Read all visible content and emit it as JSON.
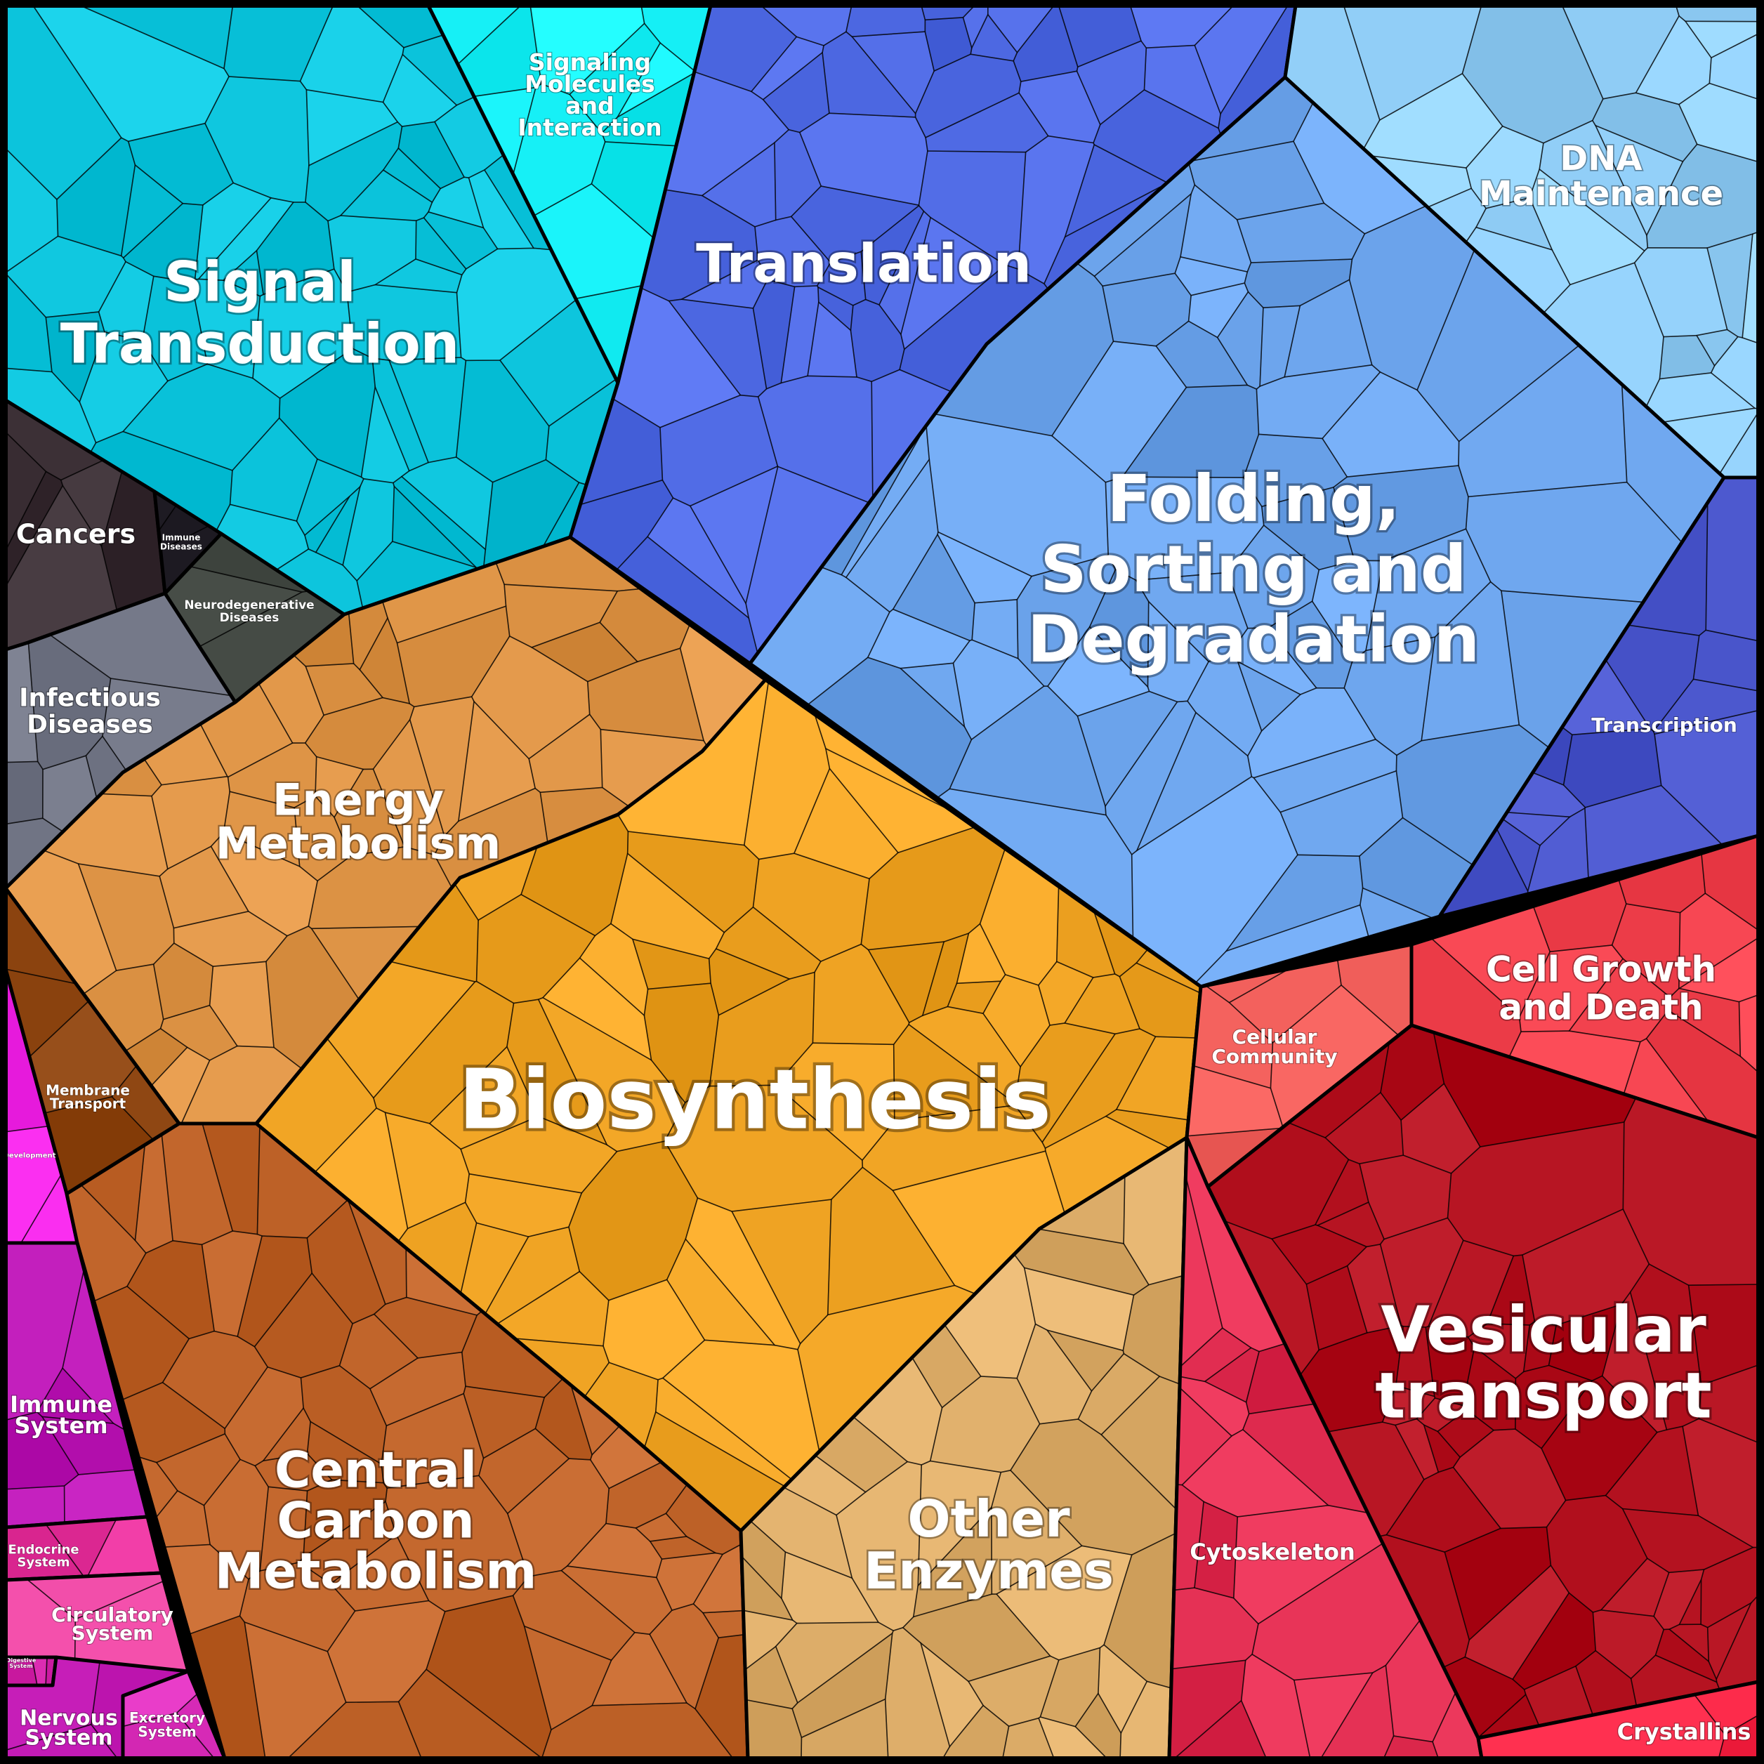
{
  "regions": {
    "signal_transduction": {
      "lines": [
        "Signal",
        "Transduction"
      ],
      "color": "#0cc4dc"
    },
    "signaling_molecules": {
      "lines": [
        "Signaling",
        "Molecules",
        "and",
        "Interaction"
      ],
      "color": "#16f0f6"
    },
    "translation": {
      "lines": [
        "Translation"
      ],
      "color": "#4f6ae4"
    },
    "dna_maintenance": {
      "lines": [
        "DNA",
        "Maintenance"
      ],
      "color": "#92cff8"
    },
    "folding": {
      "lines": [
        "Folding,",
        "Sorting and",
        "Degradation"
      ],
      "color": "#6ea6ee"
    },
    "transcription": {
      "lines": [
        "Transcription"
      ],
      "color": "#4a56cc"
    },
    "cancers": {
      "lines": [
        "Cancers"
      ],
      "color": "#3a2e34"
    },
    "immune_diseases": {
      "lines": [
        "Immune",
        "Diseases"
      ],
      "color": "#2b2830"
    },
    "neurodegenerative": {
      "lines": [
        "Neurodegenerative",
        "Diseases"
      ],
      "color": "#444a44"
    },
    "infectious": {
      "lines": [
        "Infectious",
        "Diseases"
      ],
      "color": "#707484"
    },
    "energy_metabolism": {
      "lines": [
        "Energy",
        "Metabolism"
      ],
      "color": "#dc9244"
    },
    "biosynthesis": {
      "lines": [
        "Biosynthesis"
      ],
      "color": "#f0a424"
    },
    "membrane_transport": {
      "lines": [
        "Membrane",
        "Transport"
      ],
      "color": "#8c4410"
    },
    "development": {
      "lines": [
        "Development"
      ],
      "color": "#ee22e4"
    },
    "central_carbon": {
      "lines": [
        "Central",
        "Carbon",
        "Metabolism"
      ],
      "color": "#c0642a"
    },
    "other_enzymes": {
      "lines": [
        "Other",
        "Enzymes"
      ],
      "color": "#deae6a"
    },
    "cellular_community": {
      "lines": [
        "Cellular",
        "Community"
      ],
      "color": "#ec5a56"
    },
    "cell_growth": {
      "lines": [
        "Cell Growth",
        "and Death"
      ],
      "color": "#f0404c"
    },
    "vesicular_transport": {
      "lines": [
        "Vesicular",
        "transport"
      ],
      "color": "#b2101e"
    },
    "cytoskeleton": {
      "lines": [
        "Cytoskeleton"
      ],
      "color": "#e02c50"
    },
    "crystallins": {
      "lines": [
        "Crystallins"
      ],
      "color": "#f22040"
    },
    "immune_system": {
      "lines": [
        "Immune",
        "System"
      ],
      "color": "#b814b2"
    },
    "endocrine_system": {
      "lines": [
        "Endocrine",
        "System"
      ],
      "color": "#e8349e"
    },
    "circulatory_system": {
      "lines": [
        "Circulatory",
        "System"
      ],
      "color": "#ee4aa6"
    },
    "digestive_system": {
      "lines": [
        "Digestive",
        "System"
      ],
      "color": "#d424aa"
    },
    "nervous_system": {
      "lines": [
        "Nervous",
        "System"
      ],
      "color": "#c61eb8"
    },
    "excretory_system": {
      "lines": [
        "Excretory",
        "System"
      ],
      "color": "#e438c4"
    }
  }
}
